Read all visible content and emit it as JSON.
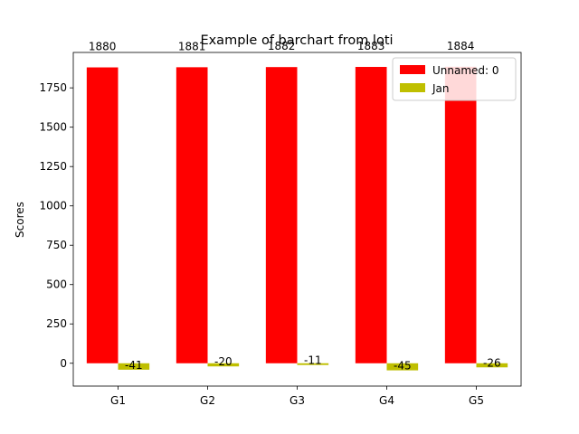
{
  "chart_data": {
    "type": "bar",
    "title": "Example of barchart from loti",
    "xlabel": "",
    "ylabel": "Scores",
    "categories": [
      "G1",
      "G2",
      "G3",
      "G4",
      "G5"
    ],
    "ylim": [
      -145,
      1975
    ],
    "yticks": [
      0,
      250,
      500,
      750,
      1000,
      1250,
      1500,
      1750
    ],
    "grid": false,
    "legend_position": "top-right",
    "series": [
      {
        "name": "Unnamed: 0",
        "color": "#ff0000",
        "values": [
          1880,
          1881,
          1882,
          1883,
          1884
        ],
        "labels": [
          "1880",
          "1881",
          "1882",
          "1883",
          "1884"
        ]
      },
      {
        "name": "Jan",
        "color": "#bfbf00",
        "values": [
          -41,
          -20,
          -11,
          -45,
          -26
        ],
        "labels": [
          "-41",
          "-20",
          "-11",
          "-45",
          "-26"
        ]
      }
    ]
  }
}
